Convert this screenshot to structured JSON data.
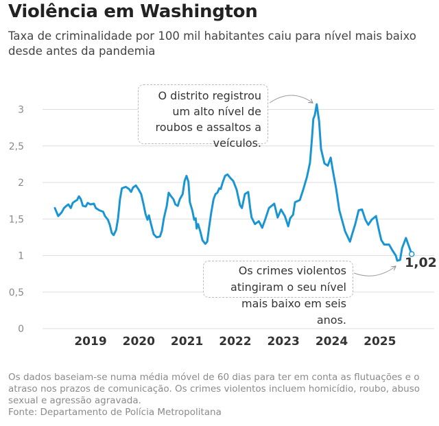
{
  "header": {
    "title": "Violência em Washington",
    "subtitle": "Taxa de criminalidade por 100 mil habitantes caiu para nível mais baixo desde antes da pandemia"
  },
  "footer": {
    "note": "Os dados baseiam-se numa média móvel de 60 dias para ter em conta as flutuações e o atraso nos prazos de comunicação. Os crimes violentos incluem homicídio, roubo, abuso sexual e agressão agravada.",
    "source": "Fonte: Departamento de Polícia Metropolitana"
  },
  "annotations": {
    "peak": "O distrito registrou um alto nível de roubos e assaltos a veículos.",
    "low": "Os crimes violentos atingiram o seu nível mais baixo em seis anos.",
    "last_value": "1,02"
  },
  "colors": {
    "line": "#1a95d3",
    "grid": "#dddddd",
    "text": "#333333"
  },
  "chart_data": {
    "type": "line",
    "title": "",
    "xlabel": "",
    "ylabel": "",
    "ylim": [
      0,
      3
    ],
    "yticks": [
      0,
      0.5,
      1,
      1.5,
      2,
      2.5,
      3
    ],
    "ytick_labels": [
      "0",
      "0,5",
      "1",
      "1,5",
      "2",
      "2,5",
      "3"
    ],
    "xticks": [
      2019,
      2020,
      2021,
      2022,
      2023,
      2024,
      2025
    ],
    "xtick_labels": [
      "2019",
      "2020",
      "2021",
      "2022",
      "2023",
      "2024",
      "2025"
    ],
    "grid": "horizontal",
    "series": [
      {
        "x": [
          2018.26,
          2018.33,
          2018.4,
          2018.45,
          2018.5,
          2018.54,
          2018.59,
          2018.63,
          2018.67,
          2018.72,
          2018.76,
          2018.8,
          2018.84,
          2018.9,
          2018.94,
          2019.0,
          2019.07,
          2019.11,
          2019.18,
          2019.26,
          2019.3,
          2019.36,
          2019.4,
          2019.44,
          2019.48,
          2019.53,
          2019.57,
          2019.61,
          2019.65,
          2019.73,
          2019.8,
          2019.84,
          2019.88,
          2019.94,
          2020.0,
          2020.05,
          2020.1,
          2020.14,
          2020.18,
          2020.21,
          2020.25,
          2020.31,
          2020.37,
          2020.44,
          2020.48,
          2020.52,
          2020.58,
          2020.62,
          2020.66,
          2020.72,
          2020.76,
          2020.81,
          2020.85,
          2020.91,
          2020.95,
          2020.99,
          2021.03,
          2021.06,
          2021.11,
          2021.15,
          2021.18,
          2021.2,
          2021.23,
          2021.28,
          2021.32,
          2021.38,
          2021.42,
          2021.46,
          2021.5,
          2021.55,
          2021.59,
          2021.63,
          2021.67,
          2021.7,
          2021.74,
          2021.79,
          2021.84,
          2021.9,
          2021.96,
          2022.03,
          2022.1,
          2022.14,
          2022.2,
          2022.27,
          2022.31,
          2022.34,
          2022.41,
          2022.49,
          2022.56,
          2022.63,
          2022.7,
          2022.81,
          2022.88,
          2022.95,
          2023.03,
          2023.1,
          2023.14,
          2023.2,
          2023.24,
          2023.34,
          2023.41,
          2023.49,
          2023.55,
          2023.59,
          2023.62,
          2023.65,
          2023.69,
          2023.74,
          2023.78,
          2023.85,
          2023.92,
          2023.98,
          2024.02,
          2024.09,
          2024.16,
          2024.28,
          2024.38,
          2024.42,
          2024.49,
          2024.56,
          2024.63,
          2024.7,
          2024.76,
          2024.83,
          2024.92,
          2024.97,
          2025.03,
          2025.09,
          2025.19,
          2025.26,
          2025.33,
          2025.36,
          2025.42,
          2025.46,
          2025.54,
          2025.66
        ],
        "values": [
          1.65,
          1.54,
          1.59,
          1.65,
          1.68,
          1.7,
          1.65,
          1.72,
          1.74,
          1.76,
          1.81,
          1.77,
          1.68,
          1.67,
          1.72,
          1.7,
          1.71,
          1.65,
          1.62,
          1.6,
          1.54,
          1.49,
          1.42,
          1.31,
          1.28,
          1.35,
          1.51,
          1.77,
          1.92,
          1.94,
          1.91,
          1.87,
          1.93,
          1.96,
          1.9,
          1.84,
          1.7,
          1.57,
          1.49,
          1.55,
          1.44,
          1.29,
          1.25,
          1.26,
          1.34,
          1.51,
          1.68,
          1.86,
          1.82,
          1.77,
          1.7,
          1.68,
          1.77,
          1.84,
          2.02,
          2.09,
          2.01,
          1.73,
          1.62,
          1.49,
          1.51,
          1.37,
          1.43,
          1.32,
          1.21,
          1.16,
          1.19,
          1.39,
          1.58,
          1.77,
          1.84,
          1.86,
          1.92,
          1.91,
          2.0,
          2.09,
          2.11,
          2.06,
          2.02,
          1.9,
          1.69,
          1.65,
          1.84,
          1.87,
          1.65,
          1.52,
          1.43,
          1.47,
          1.38,
          1.51,
          1.65,
          1.71,
          1.52,
          1.63,
          1.54,
          1.4,
          1.51,
          1.56,
          1.73,
          1.76,
          1.9,
          2.08,
          2.27,
          2.59,
          2.87,
          2.92,
          3.07,
          2.84,
          2.46,
          2.26,
          2.23,
          2.34,
          2.18,
          1.93,
          1.62,
          1.33,
          1.19,
          1.28,
          1.43,
          1.62,
          1.63,
          1.49,
          1.42,
          1.49,
          1.54,
          1.38,
          1.21,
          1.15,
          1.15,
          1.07,
          1.0,
          0.93,
          0.94,
          1.1,
          1.24,
          1.02
        ]
      }
    ]
  }
}
